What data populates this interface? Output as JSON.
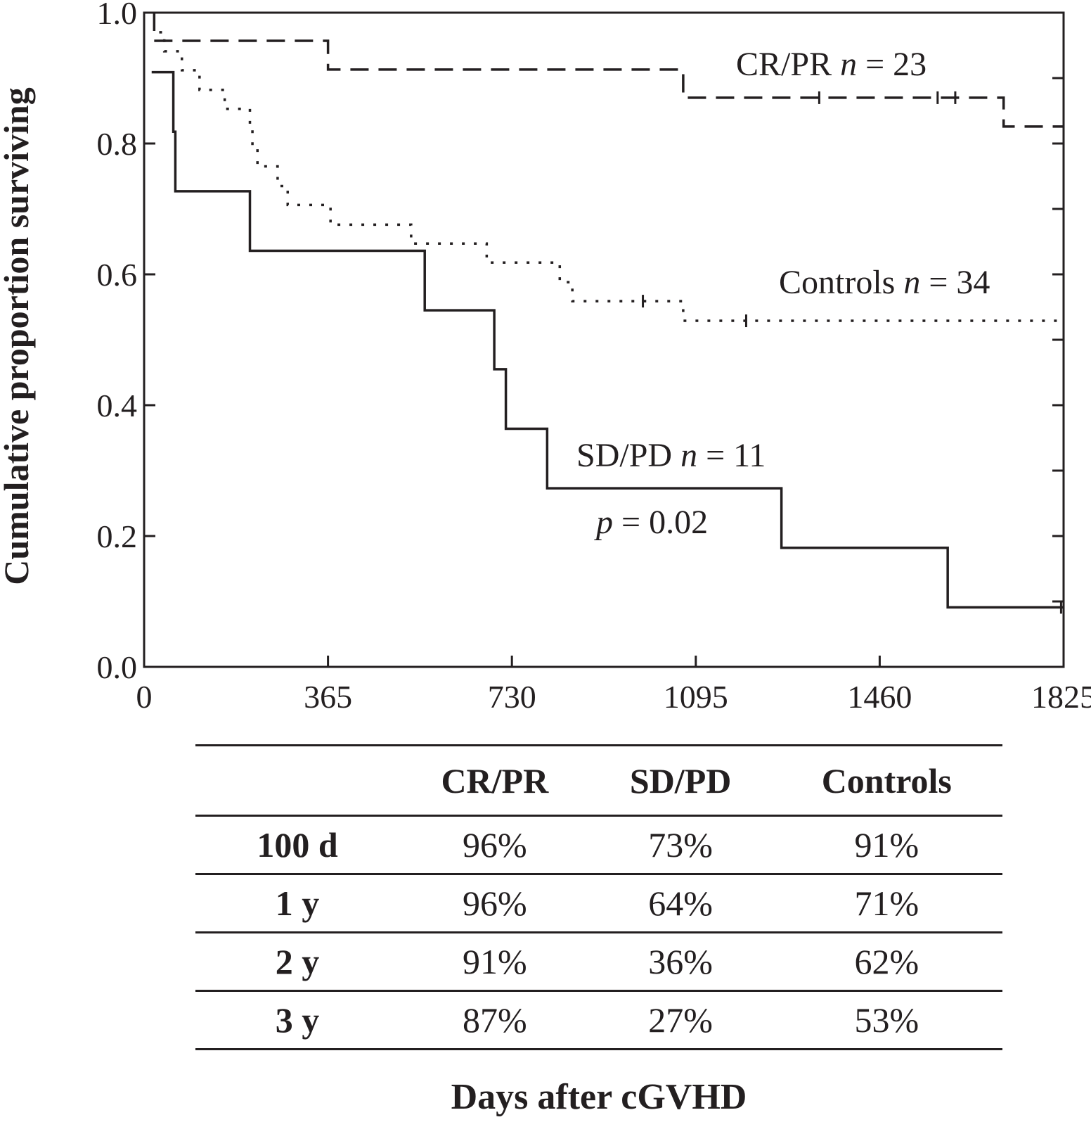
{
  "chart_data": {
    "type": "line",
    "title": "",
    "xlabel": "Days after cGVHD",
    "ylabel": "Cumulative proportion surviving",
    "xlim": [
      0,
      1825
    ],
    "ylim": [
      0,
      1
    ],
    "x_ticks": [
      "0",
      "365",
      "730",
      "1095",
      "1460",
      "1825"
    ],
    "y_ticks": [
      "0.0",
      "0.2",
      "0.4",
      "0.6",
      "0.8",
      "1.0"
    ],
    "grid": false,
    "series": [
      {
        "name": "CR/PR",
        "label_name": "CR/PR ",
        "n_label": "n",
        "n_value": " = 23",
        "style": "dashed",
        "steps": [
          [
            20,
            1.0
          ],
          [
            20,
            0.957
          ],
          [
            365,
            0.913
          ],
          [
            1070,
            0.87
          ],
          [
            1706,
            0.826
          ],
          [
            1825,
            0.826
          ]
        ],
        "censored_x": [
          1340,
          1575,
          1610
        ]
      },
      {
        "name": "SD/PD",
        "label_name": "SD/PD ",
        "n_label": "n",
        "n_value": " = 11",
        "style": "solid",
        "steps": [
          [
            15,
            0.909
          ],
          [
            58,
            0.818
          ],
          [
            62,
            0.727
          ],
          [
            210,
            0.636
          ],
          [
            557,
            0.545
          ],
          [
            695,
            0.455
          ],
          [
            718,
            0.364
          ],
          [
            800,
            0.273
          ],
          [
            1265,
            0.182
          ],
          [
            1595,
            0.091
          ],
          [
            1825,
            0.091
          ]
        ],
        "censored_x": [
          1820
        ]
      },
      {
        "name": "Controls",
        "label_name": "Controls ",
        "n_label": "n",
        "n_value": " = 34",
        "style": "dotted",
        "steps": [
          [
            30,
            0.97
          ],
          [
            40,
            0.941
          ],
          [
            75,
            0.912
          ],
          [
            110,
            0.882
          ],
          [
            160,
            0.853
          ],
          [
            210,
            0.824
          ],
          [
            215,
            0.794
          ],
          [
            225,
            0.765
          ],
          [
            265,
            0.735
          ],
          [
            285,
            0.706
          ],
          [
            370,
            0.676
          ],
          [
            530,
            0.647
          ],
          [
            680,
            0.618
          ],
          [
            825,
            0.588
          ],
          [
            850,
            0.559
          ],
          [
            1070,
            0.529
          ],
          [
            1825,
            0.529
          ]
        ],
        "censored_x": [
          990,
          1195
        ]
      }
    ],
    "annotations": {
      "p_label": "p",
      "p_value": " = 0.02"
    },
    "table": {
      "columns": [
        "",
        "CR/PR",
        "SD/PD",
        "Controls"
      ],
      "rows": [
        {
          "label": "100 d",
          "values": [
            "96%",
            "73%",
            "91%"
          ]
        },
        {
          "label": "1 y",
          "values": [
            "96%",
            "64%",
            "71%"
          ]
        },
        {
          "label": "2 y",
          "values": [
            "91%",
            "36%",
            "62%"
          ]
        },
        {
          "label": "3 y",
          "values": [
            "87%",
            "27%",
            "53%"
          ]
        }
      ]
    }
  }
}
